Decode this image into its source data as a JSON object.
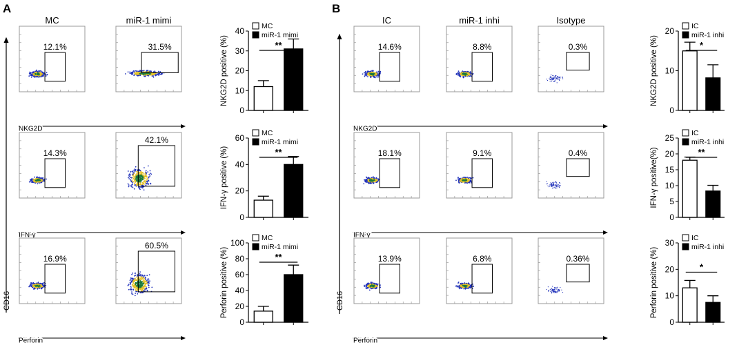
{
  "panels": [
    {
      "letter": "A",
      "y_axis_label": "CD16",
      "columns": [
        "MC",
        "miR-1 mimi"
      ],
      "rows": [
        {
          "marker": "NKG2D",
          "gates": [
            "12.1%",
            "31.5%"
          ],
          "pop": [
            "tight",
            "wide"
          ]
        },
        {
          "marker": "IFN-γ",
          "gates": [
            "14.3%",
            "42.1%"
          ],
          "pop": [
            "tight",
            "spread"
          ]
        },
        {
          "marker": "Perforin",
          "gates": [
            "16.9%",
            "60.5%"
          ],
          "pop": [
            "tight",
            "spread"
          ]
        }
      ]
    },
    {
      "letter": "B",
      "y_axis_label": "CD16",
      "columns": [
        "IC",
        "miR-1 inhi",
        "Isotype"
      ],
      "rows": [
        {
          "marker": "NKG2D",
          "gates": [
            "14.6%",
            "8.8%",
            "0.3%"
          ],
          "pop": [
            "tight",
            "tight",
            "sparse"
          ]
        },
        {
          "marker": "IFN-γ",
          "gates": [
            "18.1%",
            "9.1%",
            "0.4%"
          ],
          "pop": [
            "tight",
            "tight",
            "sparse"
          ]
        },
        {
          "marker": "Perforin",
          "gates": [
            "13.9%",
            "6.8%",
            "0.36%"
          ],
          "pop": [
            "tight",
            "tight",
            "sparse"
          ]
        }
      ]
    }
  ],
  "colors": {
    "bar_ctrl": "#ffffff",
    "bar_treat": "#000000",
    "dot_core": "#1a7a3a",
    "dot_mid": "#e6c229",
    "dot_edge": "#2233bb"
  },
  "chart_data": [
    {
      "type": "bar",
      "panel": "A",
      "categories": [
        "MC",
        "miR-1 mimi"
      ],
      "values": [
        12,
        31
      ],
      "errors": [
        3,
        5
      ],
      "legend": [
        "MC",
        "miR-1 mimi"
      ],
      "ylabel": "NKG2D positive (%)",
      "ylim": [
        0,
        40
      ],
      "yticks": [
        "0",
        "10",
        "20",
        "30",
        "40"
      ],
      "significance": "**"
    },
    {
      "type": "bar",
      "panel": "A",
      "categories": [
        "MC",
        "miR-1 mimi"
      ],
      "values": [
        13,
        40
      ],
      "errors": [
        3,
        6
      ],
      "legend": [
        "MC",
        "miR-1 mimi"
      ],
      "ylabel": "IFN-γ positive (%)",
      "ylim": [
        0,
        60
      ],
      "yticks": [
        "0",
        "20",
        "40",
        "60"
      ],
      "significance": "**"
    },
    {
      "type": "bar",
      "panel": "A",
      "categories": [
        "MC",
        "miR-1 mimi"
      ],
      "values": [
        14,
        60
      ],
      "errors": [
        6,
        12
      ],
      "legend": [
        "MC",
        "miR-1 mimi"
      ],
      "ylabel": "Perforin positive (%)",
      "ylim": [
        0,
        100
      ],
      "yticks": [
        "0",
        "20",
        "40",
        "60",
        "80",
        "100"
      ],
      "significance": "**"
    },
    {
      "type": "bar",
      "panel": "B",
      "categories": [
        "IC",
        "miR-1 inhi"
      ],
      "values": [
        15,
        8.2
      ],
      "errors": [
        2.2,
        3.3
      ],
      "legend": [
        "IC",
        "miR-1 inhi"
      ],
      "ylabel": "NKG2D positive (%)",
      "ylim": [
        0,
        20
      ],
      "yticks": [
        "0",
        "10",
        "20"
      ],
      "significance": "*"
    },
    {
      "type": "bar",
      "panel": "B",
      "categories": [
        "IC",
        "miR-1 inhi"
      ],
      "values": [
        18,
        8.3
      ],
      "errors": [
        1,
        1.8
      ],
      "legend": [
        "IC",
        "miR-1 inhi"
      ],
      "ylabel": "IFN-γ positive(%)",
      "ylim": [
        0,
        25
      ],
      "yticks": [
        "0",
        "5",
        "10",
        "15",
        "20",
        "25"
      ],
      "significance": "**"
    },
    {
      "type": "bar",
      "panel": "B",
      "categories": [
        "IC",
        "miR-1 inhi"
      ],
      "values": [
        13,
        7.5
      ],
      "errors": [
        2.8,
        2.5
      ],
      "legend": [
        "IC",
        "miR-1 inhi"
      ],
      "ylabel": "Perforin positive (%)",
      "ylim": [
        0,
        30
      ],
      "yticks": [
        "0",
        "10",
        "20",
        "30"
      ],
      "significance": "*"
    }
  ]
}
